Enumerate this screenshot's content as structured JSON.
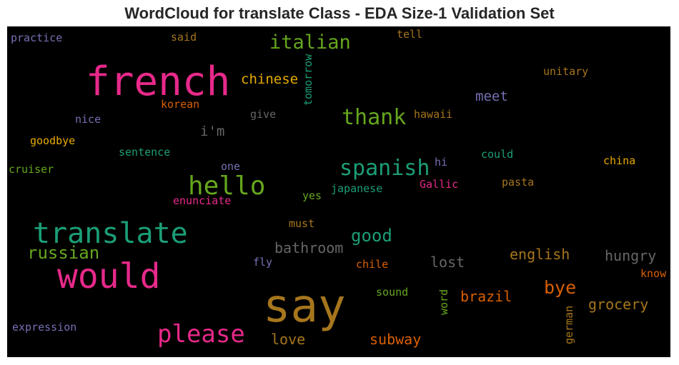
{
  "title": "WordCloud for translate Class - EDA Size-1 Validation Set",
  "colors": {
    "pink": "#e7298a",
    "green": "#66a61e",
    "teal": "#1b9e77",
    "orange": "#d95f02",
    "purple": "#7570b3",
    "gold": "#e6ab02",
    "brown": "#a6761d",
    "gray": "#666666"
  },
  "words": [
    {
      "text": "say",
      "color": "brown"
    },
    {
      "text": "french",
      "color": "pink"
    },
    {
      "text": "would",
      "color": "pink"
    },
    {
      "text": "translate",
      "color": "teal"
    },
    {
      "text": "please",
      "color": "pink"
    },
    {
      "text": "hello",
      "color": "green"
    },
    {
      "text": "italian",
      "color": "green"
    },
    {
      "text": "thank",
      "color": "green"
    },
    {
      "text": "spanish",
      "color": "teal"
    },
    {
      "text": "russian",
      "color": "green"
    },
    {
      "text": "good",
      "color": "teal"
    },
    {
      "text": "bathroom",
      "color": "gray"
    },
    {
      "text": "chinese",
      "color": "gold"
    },
    {
      "text": "bye",
      "color": "orange"
    },
    {
      "text": "subway",
      "color": "orange"
    },
    {
      "text": "love",
      "color": "brown"
    },
    {
      "text": "brazil",
      "color": "orange"
    },
    {
      "text": "grocery",
      "color": "brown"
    },
    {
      "text": "english",
      "color": "brown"
    },
    {
      "text": "hungry",
      "color": "gray"
    },
    {
      "text": "lost",
      "color": "gray"
    },
    {
      "text": "meet",
      "color": "purple"
    },
    {
      "text": "i'm",
      "color": "gray"
    },
    {
      "text": "tomorrow",
      "color": "teal"
    },
    {
      "text": "practice",
      "color": "purple"
    },
    {
      "text": "said",
      "color": "brown"
    },
    {
      "text": "tell",
      "color": "brown"
    },
    {
      "text": "unitary",
      "color": "brown"
    },
    {
      "text": "korean",
      "color": "orange"
    },
    {
      "text": "give",
      "color": "gray"
    },
    {
      "text": "hawaii",
      "color": "brown"
    },
    {
      "text": "nice",
      "color": "purple"
    },
    {
      "text": "goodbye",
      "color": "gold"
    },
    {
      "text": "sentence",
      "color": "teal"
    },
    {
      "text": "cruiser",
      "color": "green"
    },
    {
      "text": "one",
      "color": "purple"
    },
    {
      "text": "hi",
      "color": "purple"
    },
    {
      "text": "could",
      "color": "teal"
    },
    {
      "text": "china",
      "color": "gold"
    },
    {
      "text": "japanese",
      "color": "teal"
    },
    {
      "text": "Gallic",
      "color": "pink"
    },
    {
      "text": "pasta",
      "color": "brown"
    },
    {
      "text": "yes",
      "color": "green"
    },
    {
      "text": "enunciate",
      "color": "pink"
    },
    {
      "text": "must",
      "color": "brown"
    },
    {
      "text": "fly",
      "color": "purple"
    },
    {
      "text": "chile",
      "color": "orange"
    },
    {
      "text": "know",
      "color": "orange"
    },
    {
      "text": "sound",
      "color": "green"
    },
    {
      "text": "word",
      "color": "green"
    },
    {
      "text": "german",
      "color": "brown"
    },
    {
      "text": "expression",
      "color": "purple"
    }
  ]
}
